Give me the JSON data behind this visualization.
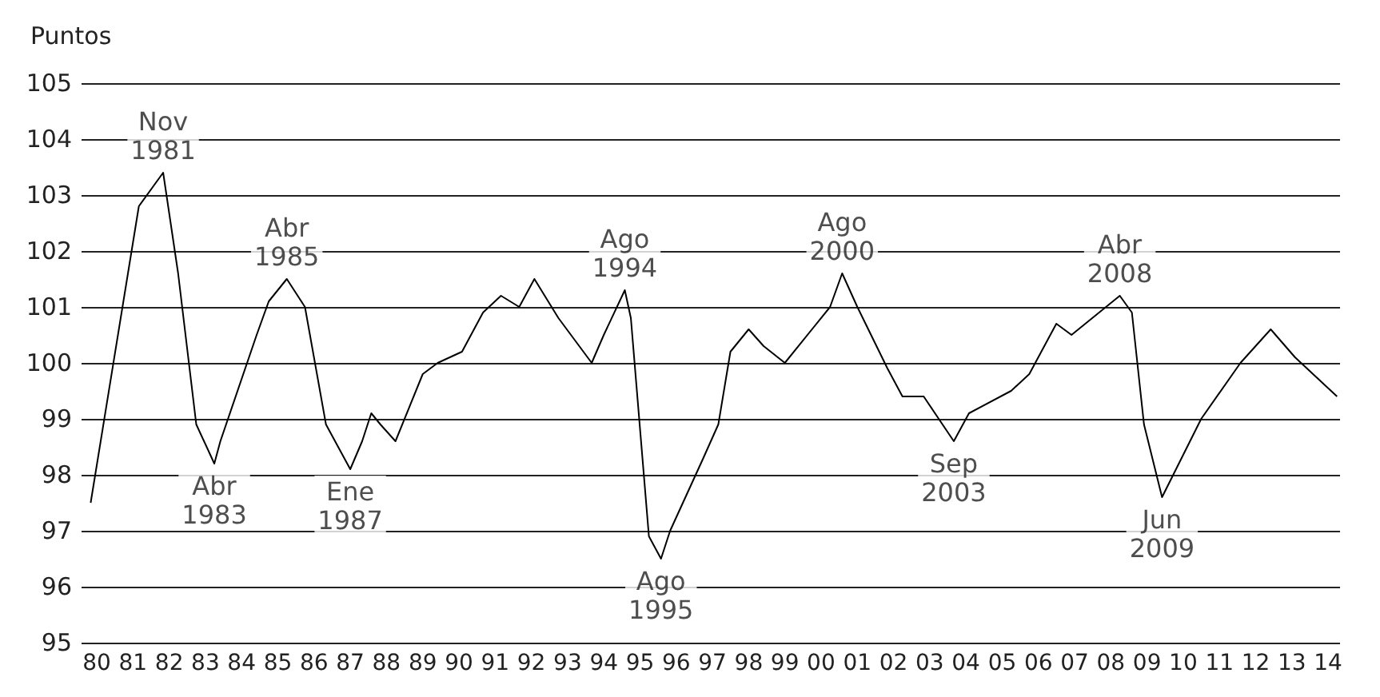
{
  "chart_data": {
    "type": "line",
    "ylabel": "Puntos",
    "color": "#000000",
    "x": [
      "1979-11",
      "1981-03",
      "1981-11",
      "1982-04",
      "1982-10",
      "1983-04",
      "1983-06",
      "1984-06",
      "1984-10",
      "1985-04",
      "1985-10",
      "1986-05",
      "1987-01",
      "1987-05",
      "1987-08",
      "1987-11",
      "1988-04",
      "1989-01",
      "1989-06",
      "1990-02",
      "1990-09",
      "1991-03",
      "1991-09",
      "1992-02",
      "1992-10",
      "1993-09",
      "1994-01",
      "1994-08",
      "1994-10",
      "1995-04",
      "1995-08",
      "1995-11",
      "1996-10",
      "1997-03",
      "1997-07",
      "1998-01",
      "1998-06",
      "1999-01",
      "2000-04",
      "2000-08",
      "2001-01",
      "2001-11",
      "2002-04",
      "2002-11",
      "2003-09",
      "2004-02",
      "2005-04",
      "2005-10",
      "2006-07",
      "2006-12",
      "2008-04",
      "2008-08",
      "2008-12",
      "2009-06",
      "2010-07",
      "2011-08",
      "2012-06",
      "2013-02",
      "2014-04"
    ],
    "values": [
      97.5,
      102.8,
      103.4,
      101.6,
      98.9,
      98.2,
      98.6,
      100.5,
      101.1,
      101.5,
      101,
      98.9,
      98.1,
      98.6,
      99.1,
      98.9,
      98.6,
      99.8,
      100,
      100.2,
      100.9,
      101.2,
      101,
      101.5,
      100.8,
      100,
      100.5,
      101.3,
      100.8,
      96.9,
      96.5,
      97,
      98.3,
      98.9,
      100.2,
      100.6,
      100.3,
      100,
      101,
      101.6,
      101,
      99.9,
      99.4,
      99.4,
      98.6,
      99.1,
      99.5,
      99.8,
      100.7,
      100.5,
      101.2,
      100.9,
      98.9,
      97.6,
      99,
      100,
      100.6,
      100.1,
      99.4
    ],
    "xlim": [
      "1979-08",
      "2014-05"
    ],
    "xticks": [
      {
        "value": "1980-01",
        "label": "80"
      },
      {
        "value": "1981-01",
        "label": "81"
      },
      {
        "value": "1982-01",
        "label": "82"
      },
      {
        "value": "1983-01",
        "label": "83"
      },
      {
        "value": "1984-01",
        "label": "84"
      },
      {
        "value": "1985-01",
        "label": "85"
      },
      {
        "value": "1986-01",
        "label": "86"
      },
      {
        "value": "1987-01",
        "label": "87"
      },
      {
        "value": "1988-01",
        "label": "88"
      },
      {
        "value": "1989-01",
        "label": "89"
      },
      {
        "value": "1990-01",
        "label": "90"
      },
      {
        "value": "1991-01",
        "label": "91"
      },
      {
        "value": "1992-01",
        "label": "92"
      },
      {
        "value": "1993-01",
        "label": "93"
      },
      {
        "value": "1994-01",
        "label": "94"
      },
      {
        "value": "1995-01",
        "label": "95"
      },
      {
        "value": "1996-01",
        "label": "96"
      },
      {
        "value": "1997-01",
        "label": "97"
      },
      {
        "value": "1998-01",
        "label": "98"
      },
      {
        "value": "1999-01",
        "label": "99"
      },
      {
        "value": "2000-01",
        "label": "00"
      },
      {
        "value": "2001-01",
        "label": "01"
      },
      {
        "value": "2002-01",
        "label": "02"
      },
      {
        "value": "2003-01",
        "label": "03"
      },
      {
        "value": "2004-01",
        "label": "04"
      },
      {
        "value": "2005-01",
        "label": "05"
      },
      {
        "value": "2006-01",
        "label": "06"
      },
      {
        "value": "2007-01",
        "label": "07"
      },
      {
        "value": "2008-01",
        "label": "08"
      },
      {
        "value": "2009-01",
        "label": "09"
      },
      {
        "value": "2010-01",
        "label": "10"
      },
      {
        "value": "2011-01",
        "label": "11"
      },
      {
        "value": "2012-01",
        "label": "12"
      },
      {
        "value": "2013-01",
        "label": "13"
      },
      {
        "value": "2014-01",
        "label": "14"
      }
    ],
    "ylim": [
      95,
      105
    ],
    "yticks": [
      95,
      96,
      97,
      98,
      99,
      100,
      101,
      102,
      103,
      104,
      105
    ],
    "grid": "y",
    "marker": "none",
    "line_style": "solid",
    "annotations": [
      {
        "text": "Nov\n1981",
        "x": "1981-11",
        "y": 103.4
      },
      {
        "text": "Abr\n1983",
        "x": "1983-04",
        "y": 98.2
      },
      {
        "text": "Abr\n1985",
        "x": "1985-04",
        "y": 101.5
      },
      {
        "text": "Ene\n1987",
        "x": "1987-01",
        "y": 98.1
      },
      {
        "text": "Ago\n1994",
        "x": "1994-08",
        "y": 101.3
      },
      {
        "text": "Ago\n1995",
        "x": "1995-08",
        "y": 96.5
      },
      {
        "text": "Ago\n2000",
        "x": "2000-08",
        "y": 101.6
      },
      {
        "text": "Sep\n2003",
        "x": "2003-09",
        "y": 98.6
      },
      {
        "text": "Abr\n2008",
        "x": "2008-04",
        "y": 101.2
      },
      {
        "text": "Jun\n2009",
        "x": "2009-06",
        "y": 97.6
      }
    ]
  }
}
